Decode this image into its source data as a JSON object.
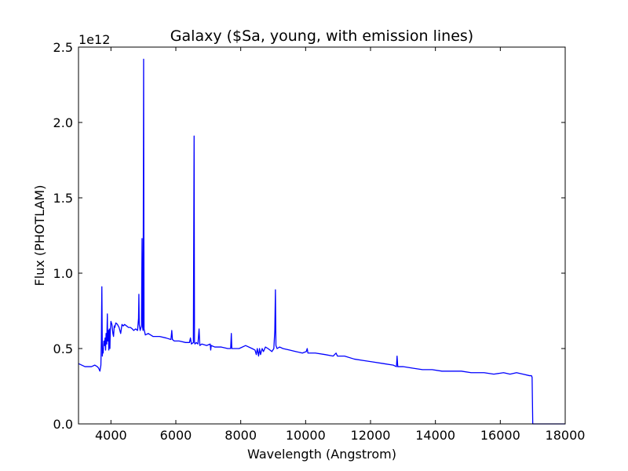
{
  "chart_data": {
    "type": "line",
    "title": "Galaxy ($Sa, young, with emission lines)",
    "xlabel": "Wavelength (Angstrom)",
    "ylabel": "Flux (PHOTLAM)",
    "y_offset_label": "1e12",
    "xlim": [
      3000,
      18000
    ],
    "ylim": [
      0.0,
      2.5
    ],
    "xticks": [
      4000,
      6000,
      8000,
      10000,
      12000,
      14000,
      16000,
      18000
    ],
    "yticks": [
      0.0,
      0.5,
      1.0,
      1.5,
      2.0,
      2.5
    ],
    "xtick_labels": [
      "4000",
      "6000",
      "8000",
      "10000",
      "12000",
      "14000",
      "16000",
      "18000"
    ],
    "ytick_labels": [
      "0.0",
      "0.5",
      "1.0",
      "1.5",
      "2.0",
      "2.5"
    ],
    "grid": false,
    "line_color": "#0000ff",
    "series": [
      {
        "x": [
          3000,
          3200,
          3400,
          3500,
          3580,
          3620,
          3660,
          3690,
          3705,
          3712,
          3720,
          3727,
          3735,
          3745,
          3760,
          3780,
          3800,
          3820,
          3835,
          3850,
          3870,
          3889,
          3900,
          3920,
          3934,
          3950,
          3968,
          3980,
          4000,
          4030,
          4060,
          4080,
          4102,
          4120,
          4150,
          4200,
          4250,
          4300,
          4340,
          4380,
          4420,
          4480,
          4540,
          4600,
          4660,
          4700,
          4760,
          4820,
          4850,
          4861,
          4872,
          4900,
          4940,
          4959,
          4975,
          4990,
          5007,
          5020,
          5060,
          5150,
          5300,
          5500,
          5700,
          5850,
          5875,
          5895,
          5950,
          6100,
          6300,
          6420,
          6450,
          6480,
          6540,
          6563,
          6575,
          6590,
          6630,
          6680,
          6716,
          6740,
          6800,
          6950,
          7060,
          7075,
          7090,
          7200,
          7400,
          7600,
          7690,
          7710,
          7725,
          7740,
          7800,
          7950,
          8150,
          8350,
          8440,
          8480,
          8510,
          8550,
          8580,
          8610,
          8660,
          8700,
          8760,
          8840,
          8900,
          8960,
          9020,
          9050,
          9069,
          9085,
          9120,
          9200,
          9300,
          9500,
          9700,
          9900,
          10020,
          10049,
          10070,
          10300,
          10600,
          10850,
          10938,
          10980,
          11200,
          11500,
          11800,
          12100,
          12400,
          12700,
          12800,
          12818,
          12840,
          13000,
          13300,
          13600,
          13900,
          14200,
          14500,
          14800,
          15100,
          15300,
          15500,
          15800,
          16100,
          16300,
          16500,
          16700,
          16900,
          16960,
          16980,
          17000,
          17500,
          18000
        ],
        "y": [
          0.4,
          0.38,
          0.38,
          0.39,
          0.38,
          0.37,
          0.35,
          0.39,
          0.55,
          0.75,
          0.91,
          0.7,
          0.45,
          0.5,
          0.47,
          0.55,
          0.52,
          0.57,
          0.49,
          0.6,
          0.53,
          0.73,
          0.55,
          0.62,
          0.49,
          0.63,
          0.5,
          0.62,
          0.68,
          0.66,
          0.6,
          0.58,
          0.65,
          0.64,
          0.67,
          0.66,
          0.64,
          0.6,
          0.66,
          0.65,
          0.66,
          0.65,
          0.64,
          0.64,
          0.63,
          0.62,
          0.63,
          0.62,
          0.7,
          0.86,
          0.66,
          0.62,
          0.65,
          1.23,
          0.64,
          0.62,
          2.42,
          0.63,
          0.59,
          0.6,
          0.58,
          0.58,
          0.57,
          0.56,
          0.62,
          0.56,
          0.55,
          0.55,
          0.54,
          0.54,
          0.57,
          0.53,
          0.54,
          1.91,
          0.54,
          0.53,
          0.54,
          0.53,
          0.63,
          0.52,
          0.53,
          0.52,
          0.53,
          0.49,
          0.52,
          0.51,
          0.51,
          0.5,
          0.5,
          0.6,
          0.5,
          0.5,
          0.5,
          0.5,
          0.52,
          0.5,
          0.49,
          0.46,
          0.5,
          0.45,
          0.5,
          0.46,
          0.5,
          0.48,
          0.51,
          0.5,
          0.49,
          0.48,
          0.5,
          0.62,
          0.89,
          0.52,
          0.5,
          0.51,
          0.5,
          0.49,
          0.48,
          0.47,
          0.48,
          0.5,
          0.47,
          0.47,
          0.46,
          0.45,
          0.47,
          0.45,
          0.45,
          0.43,
          0.42,
          0.41,
          0.4,
          0.39,
          0.38,
          0.45,
          0.38,
          0.38,
          0.37,
          0.36,
          0.36,
          0.35,
          0.35,
          0.35,
          0.34,
          0.34,
          0.34,
          0.33,
          0.34,
          0.33,
          0.34,
          0.33,
          0.32,
          0.32,
          0.31,
          0.0,
          0.0,
          0.0
        ]
      }
    ]
  }
}
